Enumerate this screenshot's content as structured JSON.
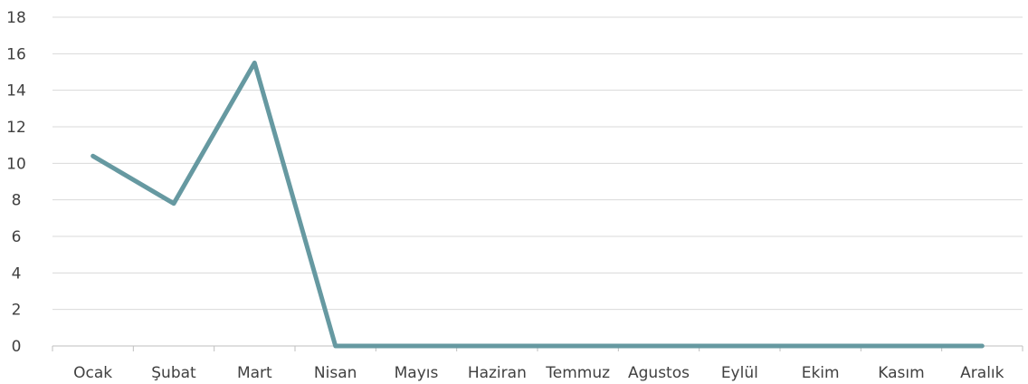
{
  "chart_data": {
    "type": "line",
    "title": "",
    "xlabel": "",
    "ylabel": "",
    "categories": [
      "Ocak",
      "Şubat",
      "Mart",
      "Nisan",
      "Mayıs",
      "Haziran",
      "Temmuz",
      "Agustos",
      "Eylül",
      "Ekim",
      "Kasım",
      "Aralık"
    ],
    "series": [
      {
        "values": [
          10.4,
          7.8,
          15.5,
          0,
          0,
          0,
          0,
          0,
          0,
          0,
          0,
          0
        ]
      }
    ],
    "ylim": [
      0,
      18
    ],
    "yticks": [
      "0",
      "2",
      "4",
      "6",
      "8",
      "10",
      "12",
      "14",
      "16",
      "18"
    ],
    "grid": true,
    "legend": "none",
    "colors": {
      "series": "#6699a1",
      "grid": "#d9d9d9",
      "axis": "#bfbfbf",
      "text": "#404040"
    }
  }
}
